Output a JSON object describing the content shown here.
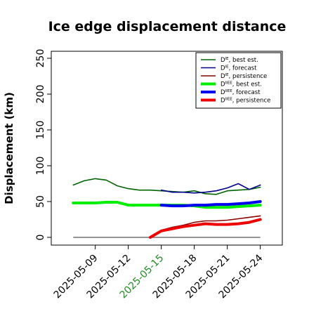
{
  "chart_data": {
    "type": "line",
    "title": "Ice edge displacement distance",
    "ylabel": "Displacement (km)",
    "xlabel": "",
    "ylim": [
      0,
      250
    ],
    "yticks": [
      0,
      50,
      100,
      150,
      200,
      250
    ],
    "xlim": [
      "2025-05-05",
      "2025-05-26"
    ],
    "xticks": [
      "2025-05-09",
      "2025-05-12",
      "2025-05-15",
      "2025-05-18",
      "2025-05-21",
      "2025-05-24"
    ],
    "xtick_colors": [
      "#000000",
      "#000000",
      "#228b22",
      "#000000",
      "#000000",
      "#000000"
    ],
    "grid": false,
    "legend_position": "top-right",
    "zero_line": {
      "color": "#555555",
      "x": [
        "2025-05-07",
        "2025-05-24"
      ],
      "y": [
        0,
        0
      ]
    },
    "series": [
      {
        "name": "D^IE, best est.",
        "legend_prefix": "D",
        "legend_sup": "IE",
        "legend_suffix": ", best est.",
        "color": "#006400",
        "width": 1.6,
        "x": [
          "2025-05-07",
          "2025-05-08",
          "2025-05-09",
          "2025-05-10",
          "2025-05-11",
          "2025-05-12",
          "2025-05-13",
          "2025-05-14",
          "2025-05-15",
          "2025-05-16",
          "2025-05-17",
          "2025-05-18",
          "2025-05-19",
          "2025-05-20",
          "2025-05-21",
          "2025-05-22",
          "2025-05-23",
          "2025-05-24"
        ],
        "values": [
          73,
          79,
          82,
          80,
          72,
          68,
          66,
          66,
          65,
          64,
          63,
          65,
          61,
          60,
          65,
          66,
          67,
          70
        ]
      },
      {
        "name": "D^IE, forecast",
        "legend_prefix": "D",
        "legend_sup": "IE",
        "legend_suffix": ", forecast",
        "color": "#00008b",
        "width": 1.6,
        "x": [
          "2025-05-15",
          "2025-05-16",
          "2025-05-17",
          "2025-05-18",
          "2025-05-19",
          "2025-05-20",
          "2025-05-21",
          "2025-05-22",
          "2025-05-23",
          "2025-05-24"
        ],
        "values": [
          66,
          63,
          63,
          62,
          63,
          65,
          69,
          75,
          67,
          73
        ]
      },
      {
        "name": "D^IE, persistence",
        "legend_prefix": "D",
        "legend_sup": "IE",
        "legend_suffix": ", persistence",
        "color": "#8b0000",
        "width": 1.6,
        "x": [
          "2025-05-14",
          "2025-05-15",
          "2025-05-16",
          "2025-05-17",
          "2025-05-18",
          "2025-05-19",
          "2025-05-20",
          "2025-05-21",
          "2025-05-22",
          "2025-05-23",
          "2025-05-24"
        ],
        "values": [
          0,
          10,
          14,
          17,
          21,
          23,
          23,
          24,
          26,
          28,
          30
        ]
      },
      {
        "name": "D^IIEE, best est.",
        "legend_prefix": "D",
        "legend_sup": "IIEE",
        "legend_suffix": ", best est.",
        "color": "#00ee00",
        "width": 4,
        "x": [
          "2025-05-07",
          "2025-05-08",
          "2025-05-09",
          "2025-05-10",
          "2025-05-11",
          "2025-05-12",
          "2025-05-13",
          "2025-05-14",
          "2025-05-15",
          "2025-05-16",
          "2025-05-17",
          "2025-05-18",
          "2025-05-19",
          "2025-05-20",
          "2025-05-21",
          "2025-05-22",
          "2025-05-23",
          "2025-05-24"
        ],
        "values": [
          48,
          48,
          48,
          49,
          49,
          45,
          45,
          45,
          45,
          45,
          45,
          44,
          42,
          42,
          42,
          43,
          44,
          45
        ]
      },
      {
        "name": "D^IIEE, forecast",
        "legend_prefix": "D",
        "legend_sup": "IIEE",
        "legend_suffix": ", forecast",
        "color": "#0000ee",
        "width": 4,
        "x": [
          "2025-05-15",
          "2025-05-16",
          "2025-05-17",
          "2025-05-18",
          "2025-05-19",
          "2025-05-20",
          "2025-05-21",
          "2025-05-22",
          "2025-05-23",
          "2025-05-24"
        ],
        "values": [
          45,
          44,
          44,
          45,
          45,
          46,
          46,
          47,
          48,
          50
        ]
      },
      {
        "name": "D^IIEE, persistence",
        "legend_prefix": "D",
        "legend_sup": "IIEE",
        "legend_suffix": ", persistence",
        "color": "#ee0000",
        "width": 4,
        "x": [
          "2025-05-14",
          "2025-05-15",
          "2025-05-16",
          "2025-05-17",
          "2025-05-18",
          "2025-05-19",
          "2025-05-20",
          "2025-05-21",
          "2025-05-22",
          "2025-05-23",
          "2025-05-24"
        ],
        "values": [
          0,
          9,
          12,
          15,
          17,
          19,
          18,
          18,
          19,
          21,
          25
        ]
      }
    ]
  }
}
